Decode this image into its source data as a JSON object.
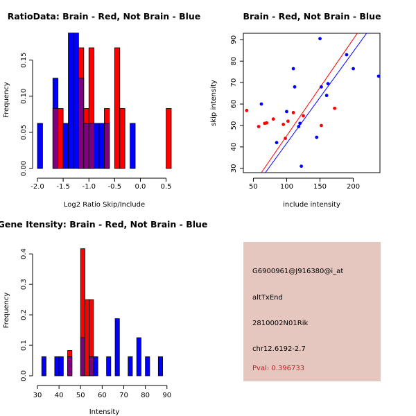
{
  "colors": {
    "brain": "#ff0000",
    "not_brain": "#0000ff",
    "overlap": "#7f007f",
    "info_bg": "#e5c7c0",
    "pval": "#b22222"
  },
  "chart_data": [
    {
      "id": "ratio",
      "type": "bar",
      "subtype": "overlaid-histogram",
      "title": "RatioData: Brain - Red, Not Brain - Blue",
      "xlabel": "Log2 Ratio Skip/Include",
      "ylabel": "Frequency",
      "xlim": [
        -2.0,
        0.6
      ],
      "ylim": [
        0,
        0.19
      ],
      "xticks": [
        -2.0,
        -1.5,
        -1.0,
        -0.5,
        0.0,
        0.5
      ],
      "xtick_labels": [
        "-2.0",
        "-1.5",
        "-1.0",
        "-0.5",
        "0.0",
        "0.5"
      ],
      "yticks": [
        0.0,
        0.05,
        0.1,
        0.15
      ],
      "ytick_labels": [
        "0.00",
        "0.05",
        "0.10",
        "0.15"
      ],
      "bins": [
        [
          -2.0,
          -1.9
        ],
        [
          -1.9,
          -1.8
        ],
        [
          -1.8,
          -1.7
        ],
        [
          -1.7,
          -1.6
        ],
        [
          -1.6,
          -1.5
        ],
        [
          -1.5,
          -1.4
        ],
        [
          -1.4,
          -1.3
        ],
        [
          -1.3,
          -1.2
        ],
        [
          -1.2,
          -1.1
        ],
        [
          -1.1,
          -1.0
        ],
        [
          -1.0,
          -0.9
        ],
        [
          -0.9,
          -0.8
        ],
        [
          -0.8,
          -0.7
        ],
        [
          -0.7,
          -0.6
        ],
        [
          -0.6,
          -0.5
        ],
        [
          -0.5,
          -0.4
        ],
        [
          -0.4,
          -0.3
        ],
        [
          -0.3,
          -0.2
        ],
        [
          -0.2,
          -0.1
        ],
        [
          -0.1,
          0.0
        ],
        [
          0.0,
          0.1
        ],
        [
          0.1,
          0.2
        ],
        [
          0.2,
          0.3
        ],
        [
          0.3,
          0.4
        ],
        [
          0.4,
          0.5
        ],
        [
          0.5,
          0.6
        ]
      ],
      "series": [
        {
          "name": "Brain",
          "color": "#ff0000",
          "values": [
            0,
            0,
            0,
            0.083,
            0.083,
            0,
            0,
            0,
            0.167,
            0.083,
            0.167,
            0,
            0,
            0.083,
            0,
            0.167,
            0.083,
            0,
            0,
            0,
            0,
            0,
            0,
            0,
            0,
            0.083
          ]
        },
        {
          "name": "Not Brain",
          "color": "#0000ff",
          "values": [
            0.0625,
            0,
            0,
            0.125,
            0,
            0.0625,
            0.1875,
            0.1875,
            0.125,
            0.0625,
            0.0625,
            0.0625,
            0.0625,
            0.0625,
            0,
            0,
            0,
            0,
            0.0625,
            0,
            0,
            0,
            0,
            0,
            0,
            0
          ]
        }
      ]
    },
    {
      "id": "scatter",
      "type": "scatter",
      "title": "Brain - Red, Not Brain - Blue",
      "xlabel": "include intensity",
      "ylabel": "skip intensity",
      "xlim": [
        35,
        240
      ],
      "ylim": [
        28,
        93
      ],
      "xticks": [
        50,
        100,
        150,
        200
      ],
      "yticks": [
        30,
        40,
        50,
        60,
        70,
        80,
        90
      ],
      "series": [
        {
          "name": "Brain",
          "color": "#ff0000",
          "points": [
            [
              40,
              57
            ],
            [
              58,
              49.5
            ],
            [
              67,
              51
            ],
            [
              70,
              51.2
            ],
            [
              80,
              53
            ],
            [
              95,
              50.5
            ],
            [
              98,
              44
            ],
            [
              102,
              52
            ],
            [
              110,
              56
            ],
            [
              125,
              54.5
            ],
            [
              152,
              50
            ],
            [
              172,
              58
            ]
          ]
        },
        {
          "name": "Not Brain",
          "color": "#0000ff",
          "points": [
            [
              62,
              60
            ],
            [
              85,
              42
            ],
            [
              100,
              56.5
            ],
            [
              110,
              76.5
            ],
            [
              112,
              68
            ],
            [
              118,
              49.5
            ],
            [
              120,
              51
            ],
            [
              122,
              31
            ],
            [
              145,
              44.5
            ],
            [
              150,
              90.5
            ],
            [
              152,
              68
            ],
            [
              160,
              64
            ],
            [
              162,
              69.5
            ],
            [
              190,
              83
            ],
            [
              200,
              76.5
            ],
            [
              238,
              73
            ]
          ]
        }
      ],
      "fit_lines": [
        {
          "name": "Brain fit",
          "color": "#ff0000",
          "from": [
            62,
            28
          ],
          "to": [
            206,
            93
          ]
        },
        {
          "name": "Not Brain fit",
          "color": "#0000ff",
          "from": [
            68,
            28
          ],
          "to": [
            220,
            93
          ]
        }
      ]
    },
    {
      "id": "intensity",
      "type": "bar",
      "subtype": "overlaid-histogram",
      "title": "Gene Itensity: Brain - Red, Not Brain - Blue",
      "xlabel": "Intensity",
      "ylabel": "Frequency",
      "xlim": [
        30,
        92
      ],
      "ylim": [
        0,
        0.43
      ],
      "xticks": [
        30,
        40,
        50,
        60,
        70,
        80,
        90
      ],
      "xtick_labels": [
        "30",
        "40",
        "50",
        "60",
        "70",
        "80",
        "90"
      ],
      "yticks": [
        0.0,
        0.1,
        0.2,
        0.3,
        0.4
      ],
      "ytick_labels": [
        "0.0",
        "0.1",
        "0.2",
        "0.3",
        "0.4"
      ],
      "bins": [
        [
          32,
          34
        ],
        [
          34,
          36
        ],
        [
          36,
          38
        ],
        [
          38,
          40
        ],
        [
          40,
          42
        ],
        [
          42,
          44
        ],
        [
          44,
          46
        ],
        [
          46,
          48
        ],
        [
          48,
          50
        ],
        [
          50,
          52
        ],
        [
          52,
          54
        ],
        [
          54,
          56
        ],
        [
          56,
          58
        ],
        [
          58,
          60
        ],
        [
          60,
          62
        ],
        [
          62,
          64
        ],
        [
          64,
          66
        ],
        [
          66,
          68
        ],
        [
          68,
          70
        ],
        [
          70,
          72
        ],
        [
          72,
          74
        ],
        [
          74,
          76
        ],
        [
          76,
          78
        ],
        [
          78,
          80
        ],
        [
          80,
          82
        ],
        [
          82,
          84
        ],
        [
          84,
          86
        ],
        [
          86,
          88
        ],
        [
          88,
          90
        ]
      ],
      "series": [
        {
          "name": "Brain",
          "color": "#ff0000",
          "values": [
            0,
            0,
            0,
            0,
            0,
            0,
            0.083,
            0,
            0,
            0.417,
            0.25,
            0.25,
            0,
            0,
            0,
            0,
            0,
            0,
            0,
            0,
            0,
            0,
            0,
            0,
            0,
            0,
            0,
            0,
            0
          ]
        },
        {
          "name": "Not Brain",
          "color": "#0000ff",
          "values": [
            0.0625,
            0,
            0,
            0.0625,
            0.0625,
            0,
            0.0625,
            0,
            0,
            0.125,
            0,
            0.0625,
            0.0625,
            0,
            0,
            0.0625,
            0,
            0.1875,
            0,
            0,
            0.0625,
            0,
            0.125,
            0,
            0.0625,
            0,
            0,
            0.0625,
            0
          ]
        }
      ]
    }
  ],
  "info_panel": {
    "probe_id": "G6900961@J916380@i_at",
    "event_type": "altTxEnd",
    "gene": "2810002N01Rik",
    "location": "chr12.6192-2.7",
    "pval": "Pval: 0.396733"
  }
}
